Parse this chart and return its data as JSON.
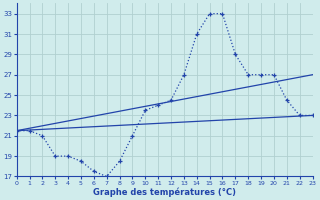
{
  "title": "Graphe des températures (°C)",
  "background_color": "#d0ecec",
  "grid_color": "#b0d0d0",
  "line_color": "#2244aa",
  "ylim": [
    17,
    34
  ],
  "xlim": [
    0,
    23
  ],
  "yticks": [
    17,
    19,
    21,
    23,
    25,
    27,
    29,
    31,
    33
  ],
  "xticks": [
    0,
    1,
    2,
    3,
    4,
    5,
    6,
    7,
    8,
    9,
    10,
    11,
    12,
    13,
    14,
    15,
    16,
    17,
    18,
    19,
    20,
    21,
    22,
    23
  ],
  "curve_x": [
    0,
    1,
    2,
    3,
    4,
    5,
    6,
    7,
    8,
    9,
    10,
    11,
    12,
    13,
    14,
    15,
    16,
    17,
    18,
    19,
    20,
    21,
    22,
    23
  ],
  "curve_y": [
    21.5,
    21.5,
    21.0,
    19.0,
    19.0,
    18.5,
    17.5,
    17.0,
    18.5,
    21.0,
    23.5,
    24.0,
    24.5,
    27.0,
    31.0,
    33.0,
    33.0,
    29.0,
    27.0,
    27.0,
    27.0,
    24.5,
    23.0,
    23.0
  ],
  "trend1_x": [
    0,
    23
  ],
  "trend1_y": [
    21.5,
    23.0
  ],
  "trend2_x": [
    0,
    23
  ],
  "trend2_y": [
    21.5,
    27.0
  ]
}
